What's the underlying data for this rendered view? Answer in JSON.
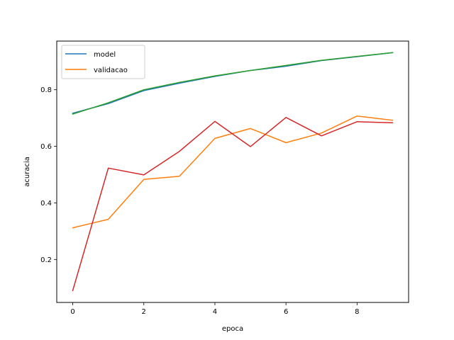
{
  "chart_data": {
    "type": "line",
    "title": "",
    "xlabel": "epoca",
    "ylabel": "acuracia",
    "xlim": [
      -0.45,
      9.45
    ],
    "ylim": [
      0.048,
      0.972
    ],
    "xticks": [
      0,
      2,
      4,
      6,
      8
    ],
    "yticks": [
      0.2,
      0.4,
      0.6,
      0.8
    ],
    "xtick_labels": [
      "0",
      "2",
      "4",
      "6",
      "8"
    ],
    "ytick_labels": [
      "0.2",
      "0.4",
      "0.6",
      "0.8"
    ],
    "grid": false,
    "legend_position": "upper-left",
    "x": [
      0,
      1,
      2,
      3,
      4,
      5,
      6,
      7,
      8,
      9
    ],
    "series": [
      {
        "name": "model",
        "color": "#1f77b4",
        "values": [
          0.717,
          0.751,
          0.797,
          0.823,
          0.847,
          0.868,
          0.883,
          0.903,
          0.917,
          0.931
        ]
      },
      {
        "name": "validacao",
        "color": "#ff7f0e",
        "values": [
          0.312,
          0.342,
          0.483,
          0.494,
          0.628,
          0.663,
          0.613,
          0.647,
          0.707,
          0.692
        ]
      },
      {
        "color": "#2ca02c",
        "values": [
          0.714,
          0.754,
          0.8,
          0.826,
          0.849,
          0.868,
          0.886,
          0.904,
          0.918,
          0.931
        ]
      },
      {
        "color": "#d62728",
        "values": [
          0.09,
          0.523,
          0.499,
          0.582,
          0.688,
          0.599,
          0.702,
          0.637,
          0.687,
          0.683
        ]
      }
    ]
  }
}
